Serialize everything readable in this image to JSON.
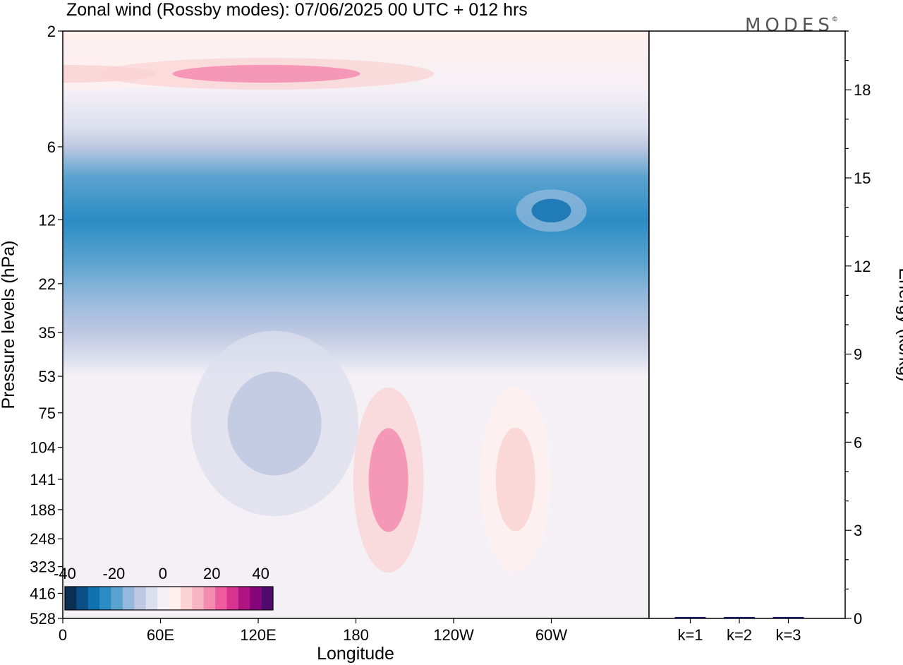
{
  "title": "Zonal wind (Rossby modes):  07/06/2025  00 UTC  + 012 hrs",
  "watermark": "MODES",
  "watermark_mark": "©",
  "chart_data": [
    {
      "type": "heatmap",
      "xlabel": "Longitude",
      "ylabel": "Pressure levels (hPa)",
      "x_ticks": [
        "0",
        "60E",
        "120E",
        "180",
        "120W",
        "60W"
      ],
      "y_ticks": [
        "2",
        "6",
        "12",
        "22",
        "35",
        "53",
        "75",
        "104",
        "141",
        "188",
        "248",
        "323",
        "416",
        "528"
      ],
      "colorbar": {
        "tick_labels": [
          "-40",
          "-20",
          "0",
          "20",
          "40"
        ],
        "tick_values": [
          -40,
          -20,
          0,
          20,
          40
        ],
        "levels": [
          -40,
          -35,
          -30,
          -25,
          -20,
          -15,
          -10,
          -5,
          0,
          5,
          10,
          15,
          20,
          25,
          30,
          35,
          40,
          45
        ],
        "colors": [
          "#0b2f52",
          "#0a4f86",
          "#1072b1",
          "#2b8cc4",
          "#5ba3cf",
          "#94b9dc",
          "#bec8e2",
          "#dcdfee",
          "#f5f0f6",
          "#fff0ee",
          "#fad4d4",
          "#f7b4c4",
          "#f48bb0",
          "#ee5c9f",
          "#d93392",
          "#b01482",
          "#86057a",
          "#4f0a6e"
        ]
      },
      "field_bands": [
        {
          "y": 2,
          "value": 5
        },
        {
          "y": 3.5,
          "value": 2
        },
        {
          "y": 5,
          "value": -3
        },
        {
          "y": 6,
          "value": -10
        },
        {
          "y": 8,
          "value": -22
        },
        {
          "y": 12,
          "value": -26
        },
        {
          "y": 18,
          "value": -20
        },
        {
          "y": 25,
          "value": -15
        },
        {
          "y": 35,
          "value": -10
        },
        {
          "y": 45,
          "value": -4
        },
        {
          "y": 53,
          "value": 1
        },
        {
          "y": 528,
          "value": 1
        }
      ],
      "features": [
        {
          "lon": 0,
          "p": 3,
          "value": 10,
          "kind": "max"
        },
        {
          "lon": 125,
          "p": 3,
          "value": 18,
          "kind": "max"
        },
        {
          "lon": 300,
          "p": 11,
          "value": -30,
          "kind": "min"
        },
        {
          "lon": 130,
          "p": 83,
          "value": -8,
          "kind": "min"
        },
        {
          "lon": 200,
          "p": 142,
          "value": 20,
          "kind": "max"
        },
        {
          "lon": 278,
          "p": 141,
          "value": 12,
          "kind": "max"
        }
      ]
    },
    {
      "type": "bar",
      "categories": [
        "k=1",
        "k=2",
        "k=3"
      ],
      "values": [
        0.05,
        0.05,
        0.05
      ],
      "ylabel": "Energy (kJ/kg)",
      "y_ticks": [
        "0",
        "3",
        "6",
        "9",
        "12",
        "15",
        "18"
      ],
      "ylim": [
        0,
        20
      ]
    }
  ]
}
